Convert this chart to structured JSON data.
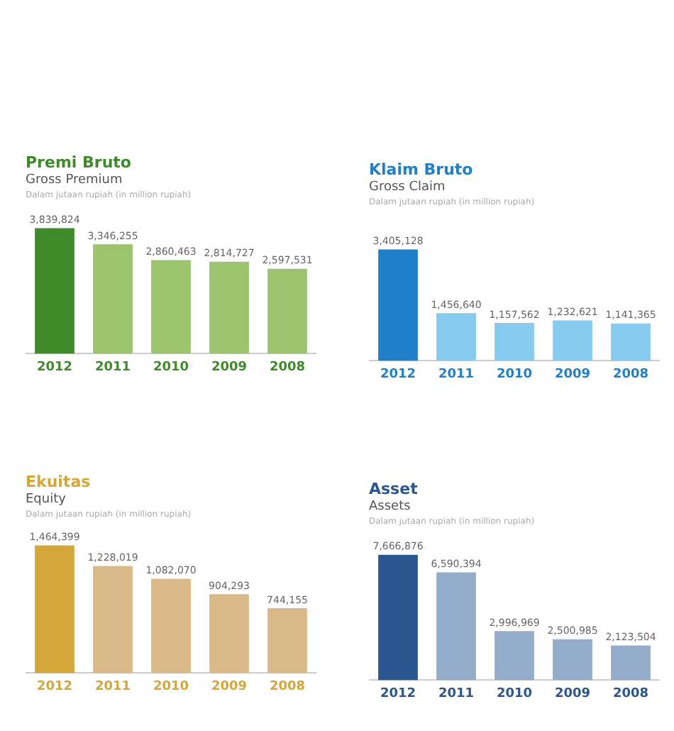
{
  "chart_data": [
    {
      "type": "bar",
      "title": "Premi Bruto",
      "subtitle": "Gross Premium",
      "annotations": [
        "Dalam jutaan rupiah (in million rupiah)"
      ],
      "categories": [
        "2012",
        "2011",
        "2010",
        "2009",
        "2008"
      ],
      "values": [
        3839824,
        3346255,
        2860463,
        2814727,
        2597531
      ],
      "value_labels": [
        "3,839,824",
        "3,346,255",
        "2,860,463",
        "2,814,727",
        "2,597,531"
      ],
      "colors": [
        "#3f8a2a",
        "#9cc46e",
        "#9cc46e",
        "#9cc46e",
        "#9cc46e"
      ],
      "grid": false,
      "legend": false
    },
    {
      "type": "bar",
      "title": "Klaim Bruto",
      "subtitle": "Gross Claim",
      "annotations": [
        "Dalam jutaan rupiah (in million rupiah)"
      ],
      "categories": [
        "2012",
        "2011",
        "2010",
        "2009",
        "2008"
      ],
      "values": [
        3405128,
        1456640,
        1157562,
        1232621,
        1141365
      ],
      "value_labels": [
        "3,405,128",
        "1,456,640",
        "1,157,562",
        "1,232,621",
        "1,141,365"
      ],
      "colors": [
        "#1f7fc8",
        "#86caf0",
        "#86caf0",
        "#86caf0",
        "#86caf0"
      ],
      "grid": false,
      "legend": false
    },
    {
      "type": "bar",
      "title": "Ekuitas",
      "subtitle": "Equity",
      "annotations": [
        "Dalam jutaan rupiah (in million rupiah)"
      ],
      "categories": [
        "2012",
        "2011",
        "2010",
        "2009",
        "2008"
      ],
      "values": [
        1464399,
        1228019,
        1082070,
        904293,
        744155
      ],
      "value_labels": [
        "1,464,399",
        "1,228,019",
        "1,082,070",
        "904,293",
        "744,155"
      ],
      "colors": [
        "#d4a73a",
        "#d8b987",
        "#d8b987",
        "#d8b987",
        "#d8b987"
      ],
      "grid": false,
      "legend": false
    },
    {
      "type": "bar",
      "title": "Asset",
      "subtitle": "Assets",
      "annotations": [
        "Dalam jutaan rupiah (in million rupiah)"
      ],
      "categories": [
        "2012",
        "2011",
        "2010",
        "2009",
        "2008"
      ],
      "values": [
        7666876,
        6590394,
        2996969,
        2500985,
        2123504
      ],
      "value_labels": [
        "7,666,876",
        "6,590,394",
        "2,996,969",
        "2,500,985",
        "2,123,504"
      ],
      "colors": [
        "#2b5690",
        "#93acc9",
        "#93acc9",
        "#93acc9",
        "#93acc9"
      ],
      "grid": false,
      "legend": false
    }
  ]
}
